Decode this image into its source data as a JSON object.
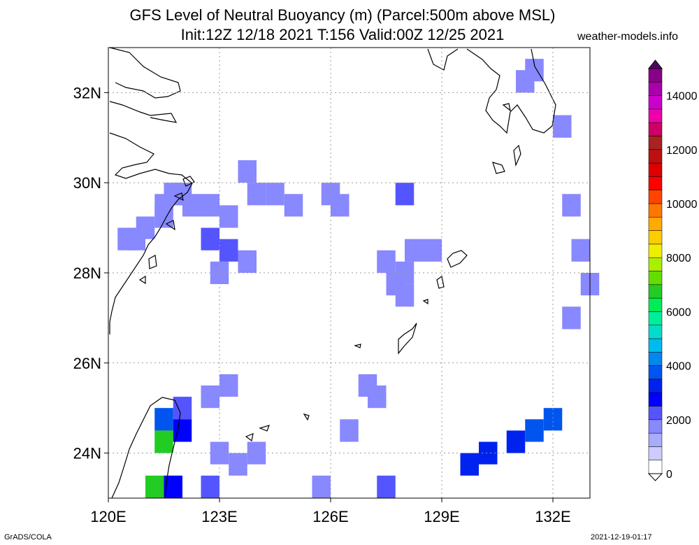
{
  "header": {
    "title_line1": "GFS Level of Neutral Buoyancy (m) (Parcel:500m above MSL)",
    "title_line2": "Init:12Z 12/18 2021 T:156 Valid:00Z 12/25 2021",
    "site": "weather-models.info"
  },
  "footer": {
    "left": "GrADS/COLA",
    "right": "2021-12-19-01:17"
  },
  "map": {
    "lon_range": [
      120,
      133
    ],
    "lat_range": [
      23,
      33
    ],
    "lon_ticks": [
      {
        "value": 120,
        "label": "120E"
      },
      {
        "value": 123,
        "label": "123E"
      },
      {
        "value": 126,
        "label": "126E"
      },
      {
        "value": 129,
        "label": "129E"
      },
      {
        "value": 132,
        "label": "132E"
      }
    ],
    "lat_ticks": [
      {
        "value": 24,
        "label": "24N"
      },
      {
        "value": 26,
        "label": "26N"
      },
      {
        "value": 28,
        "label": "28N"
      },
      {
        "value": 30,
        "label": "30N"
      },
      {
        "value": 32,
        "label": "32N"
      }
    ],
    "grid_style": "dotted",
    "cell_deg": 0.25,
    "shaded_cells": [
      {
        "lon": 121.5,
        "lat": 29.75,
        "v": 1500
      },
      {
        "lon": 121.75,
        "lat": 29.75,
        "v": 1500
      },
      {
        "lon": 121.25,
        "lat": 29.5,
        "v": 1500
      },
      {
        "lon": 121.25,
        "lat": 29.25,
        "v": 1500
      },
      {
        "lon": 120.25,
        "lat": 28.75,
        "v": 1500
      },
      {
        "lon": 120.5,
        "lat": 28.75,
        "v": 1500
      },
      {
        "lon": 120.75,
        "lat": 29.0,
        "v": 1500
      },
      {
        "lon": 122.0,
        "lat": 29.5,
        "v": 1500
      },
      {
        "lon": 122.5,
        "lat": 29.5,
        "v": 1800
      },
      {
        "lon": 123.0,
        "lat": 29.25,
        "v": 1800
      },
      {
        "lon": 122.5,
        "lat": 28.75,
        "v": 2000
      },
      {
        "lon": 123.0,
        "lat": 28.5,
        "v": 2100
      },
      {
        "lon": 122.75,
        "lat": 28.0,
        "v": 1800
      },
      {
        "lon": 123.5,
        "lat": 28.25,
        "v": 1500
      },
      {
        "lon": 123.75,
        "lat": 29.75,
        "v": 1500
      },
      {
        "lon": 124.25,
        "lat": 29.75,
        "v": 1500
      },
      {
        "lon": 124.75,
        "lat": 29.5,
        "v": 1500
      },
      {
        "lon": 123.5,
        "lat": 30.25,
        "v": 1500
      },
      {
        "lon": 125.75,
        "lat": 29.75,
        "v": 1500
      },
      {
        "lon": 126.0,
        "lat": 29.5,
        "v": 1500
      },
      {
        "lon": 127.25,
        "lat": 28.25,
        "v": 1500
      },
      {
        "lon": 127.75,
        "lat": 28.0,
        "v": 1500
      },
      {
        "lon": 128.0,
        "lat": 28.5,
        "v": 1500
      },
      {
        "lon": 128.5,
        "lat": 28.5,
        "v": 1500
      },
      {
        "lon": 127.5,
        "lat": 27.75,
        "v": 1500
      },
      {
        "lon": 127.75,
        "lat": 27.5,
        "v": 1500
      },
      {
        "lon": 127.75,
        "lat": 29.75,
        "v": 2200
      },
      {
        "lon": 126.75,
        "lat": 25.5,
        "v": 1500
      },
      {
        "lon": 127.0,
        "lat": 25.25,
        "v": 1500
      },
      {
        "lon": 126.25,
        "lat": 24.5,
        "v": 1600
      },
      {
        "lon": 121.75,
        "lat": 25.0,
        "v": 2200
      },
      {
        "lon": 121.25,
        "lat": 24.75,
        "v": 3500
      },
      {
        "lon": 121.75,
        "lat": 24.5,
        "v": 2500
      },
      {
        "lon": 122.5,
        "lat": 25.25,
        "v": 1800
      },
      {
        "lon": 123.0,
        "lat": 25.5,
        "v": 1500
      },
      {
        "lon": 122.75,
        "lat": 24.0,
        "v": 1800
      },
      {
        "lon": 123.25,
        "lat": 23.75,
        "v": 1800
      },
      {
        "lon": 123.75,
        "lat": 24.0,
        "v": 1500
      },
      {
        "lon": 122.5,
        "lat": 23.25,
        "v": 2000
      },
      {
        "lon": 121.25,
        "lat": 24.25,
        "v": 6500
      },
      {
        "lon": 121.0,
        "lat": 23.25,
        "v": 6500
      },
      {
        "lon": 121.5,
        "lat": 23.25,
        "v": 2500
      },
      {
        "lon": 125.5,
        "lat": 23.25,
        "v": 1500
      },
      {
        "lon": 127.25,
        "lat": 23.25,
        "v": 2000
      },
      {
        "lon": 129.5,
        "lat": 23.75,
        "v": 3200
      },
      {
        "lon": 130.0,
        "lat": 24.0,
        "v": 3400
      },
      {
        "lon": 130.75,
        "lat": 24.25,
        "v": 3300
      },
      {
        "lon": 131.25,
        "lat": 24.5,
        "v": 3500
      },
      {
        "lon": 131.75,
        "lat": 24.75,
        "v": 3800
      },
      {
        "lon": 132.25,
        "lat": 29.5,
        "v": 1500
      },
      {
        "lon": 132.5,
        "lat": 28.5,
        "v": 1500
      },
      {
        "lon": 132.75,
        "lat": 27.75,
        "v": 1500
      },
      {
        "lon": 132.25,
        "lat": 27.0,
        "v": 1500
      },
      {
        "lon": 131.25,
        "lat": 32.5,
        "v": 1500
      },
      {
        "lon": 131.0,
        "lat": 32.25,
        "v": 1500
      },
      {
        "lon": 132.0,
        "lat": 31.25,
        "v": 1500
      }
    ]
  },
  "colorbar": {
    "min": 0,
    "max": 15000,
    "step": 500,
    "labels": [
      {
        "value": 0,
        "label": "0"
      },
      {
        "value": 2000,
        "label": "2000"
      },
      {
        "value": 4000,
        "label": "4000"
      },
      {
        "value": 6000,
        "label": "6000"
      },
      {
        "value": 8000,
        "label": "8000"
      },
      {
        "value": 10000,
        "label": "10000"
      },
      {
        "value": 12000,
        "label": "12000"
      },
      {
        "value": 14000,
        "label": "14000"
      }
    ],
    "colors": [
      "#ffffff",
      "#ccccff",
      "#aaaaff",
      "#8888ff",
      "#5555ff",
      "#0000ff",
      "#0022ee",
      "#0055ee",
      "#0088ee",
      "#00bbee",
      "#00ddcc",
      "#00ee99",
      "#00ee55",
      "#22cc22",
      "#66dd00",
      "#aaee00",
      "#eeee00",
      "#ffcc00",
      "#ffaa00",
      "#ff7700",
      "#ff4400",
      "#ff0000",
      "#dd0000",
      "#bb1111",
      "#aa2222",
      "#cc0066",
      "#ee00aa",
      "#cc00cc",
      "#aa00aa",
      "#880088",
      "#550066"
    ]
  }
}
